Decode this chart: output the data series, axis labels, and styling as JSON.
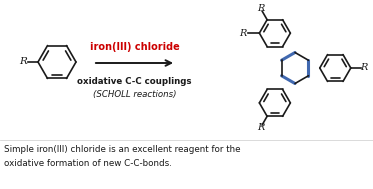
{
  "background_color": "#ffffff",
  "iron_chloride_text": "iron(III) chloride",
  "iron_chloride_color": "#cc0000",
  "label1": "oxidative C-C couplings",
  "label2": "(SCHOLL reactions)",
  "bottom_text1": "Simple iron(III) chloride is an excellent reagent for the",
  "bottom_text2": "oxidative formation of new C-C-bonds.",
  "blue_bond_color": "#4169b0",
  "black_color": "#1a1a1a",
  "fig_width": 3.73,
  "fig_height": 1.89,
  "dpi": 100
}
